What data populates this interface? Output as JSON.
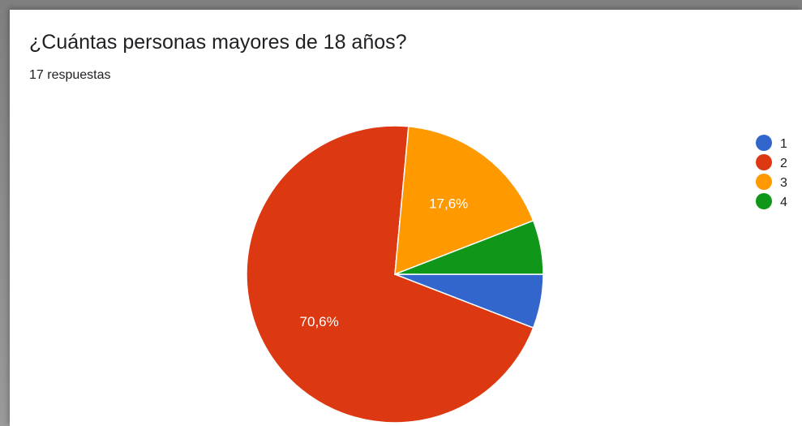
{
  "question": {
    "title": "¿Cuántas personas mayores de 18 años?",
    "responses": "17 respuestas"
  },
  "chart_data": {
    "type": "pie",
    "title": "¿Cuántas personas mayores de 18 años?",
    "subtitle": "17 respuestas",
    "total": 17,
    "categories": [
      "1",
      "2",
      "3",
      "4"
    ],
    "values": [
      1,
      12,
      3,
      1
    ],
    "percent_labels": [
      "",
      "70,6%",
      "17,6%",
      ""
    ],
    "colors": [
      "#3366cc",
      "#dc3912",
      "#ff9900",
      "#109618"
    ],
    "legend_position": "right"
  }
}
